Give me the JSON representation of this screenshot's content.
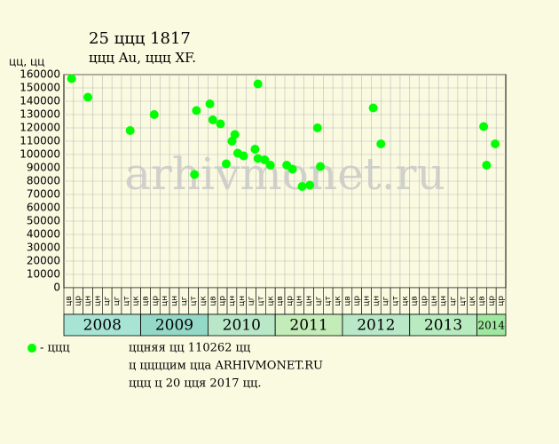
{
  "chart_data": {
    "type": "scatter",
    "title": "25 ццц 1817",
    "subtitle": "ццц Au, ццц XF.",
    "ylabel": "цц, цц",
    "watermark": "arhivmonet.ru",
    "months": [
      "цв",
      "цр",
      "цн",
      "цн",
      "цг",
      "цг",
      "цт",
      "цк",
      "цв",
      "цр",
      "цн",
      "цн",
      "цг",
      "цт",
      "цк",
      "цв",
      "цр",
      "цн",
      "цн",
      "цг",
      "цт",
      "цк",
      "цв",
      "цр",
      "цн",
      "цн",
      "цг",
      "цт",
      "цк",
      "цв",
      "цр",
      "цн",
      "цн",
      "цг",
      "цт",
      "цк",
      "цв",
      "цр",
      "цн",
      "цн",
      "цг",
      "цт",
      "цк",
      "цв",
      "цр",
      "цр"
    ],
    "years": [
      {
        "label": "2008",
        "span": 8
      },
      {
        "label": "2009",
        "span": 7
      },
      {
        "label": "2010",
        "span": 7
      },
      {
        "label": "2011",
        "span": 7
      },
      {
        "label": "2012",
        "span": 7
      },
      {
        "label": "2013",
        "span": 7
      },
      {
        "label": "2014",
        "span": 3
      }
    ],
    "xlim": [
      0,
      46
    ],
    "ylim": [
      0,
      160000
    ],
    "yticks": [
      0,
      10000,
      20000,
      30000,
      40000,
      50000,
      60000,
      70000,
      80000,
      90000,
      100000,
      110000,
      120000,
      130000,
      140000,
      150000,
      160000
    ],
    "grid": true,
    "series": [
      {
        "name": "- ццц",
        "color": "#00ff00",
        "x": [
          0.8,
          2.5,
          6.9,
          9.4,
          13.6,
          13.8,
          15.2,
          15.5,
          16.3,
          16.9,
          17.5,
          17.8,
          18.1,
          18.7,
          19.9,
          20.2,
          20.2,
          20.9,
          21.5,
          23.2,
          23.8,
          24.8,
          25.6,
          26.4,
          26.7,
          32.2,
          33.0,
          43.7,
          44.0,
          44.9
        ],
        "values": [
          157000,
          143000,
          118000,
          130000,
          85000,
          133000,
          138000,
          126000,
          123000,
          93000,
          110000,
          115000,
          101000,
          99000,
          104000,
          153000,
          97000,
          96000,
          92000,
          92000,
          89000,
          76000,
          77000,
          120000,
          91000,
          135000,
          108000,
          121000,
          92000,
          108000
        ]
      }
    ],
    "notes": [
      "ццняя цц 110262 цц",
      "ц ццццим цца ARHIVMONET.RU",
      "ццц ц 20 цця 2017 цц."
    ]
  }
}
